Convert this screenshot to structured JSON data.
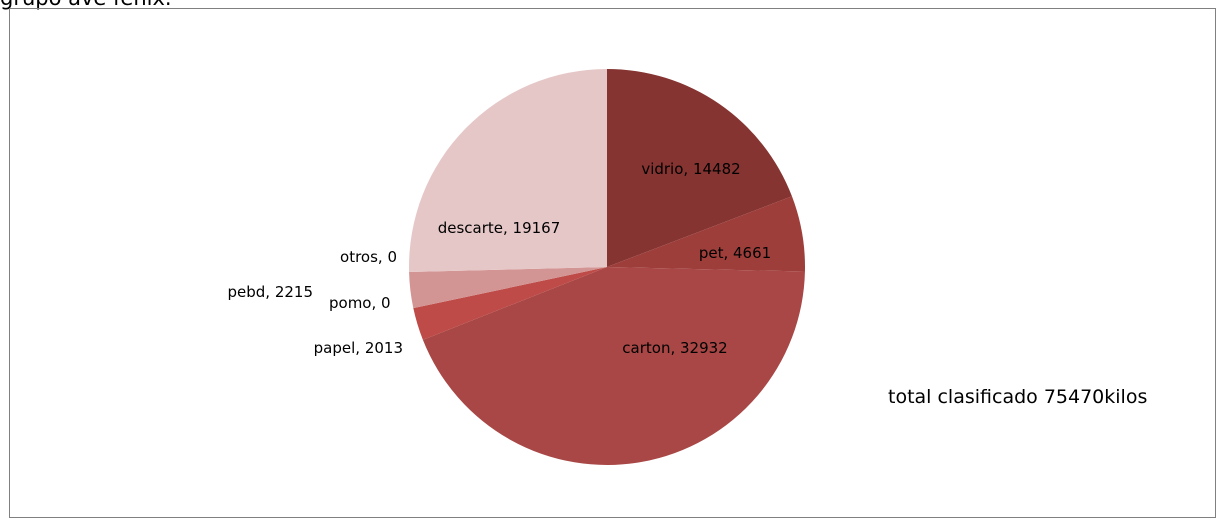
{
  "chart_data": {
    "type": "pie",
    "title": "grupo ave fenix.",
    "categories": [
      "vidrio",
      "pet",
      "carton",
      "papel",
      "pebd",
      "pomo",
      "otros",
      "descarte"
    ],
    "values": [
      14482,
      4661,
      32932,
      2013,
      2215,
      0,
      0,
      19167
    ],
    "data_labels": [
      "vidrio, 14482",
      "pet, 4661",
      "carton, 32932",
      "papel, 2013",
      "pebd, 2215",
      "pomo, 0",
      "otros, 0",
      "descarte, 19167"
    ],
    "colors": [
      "#853431",
      "#9e3e3b",
      "#a84745",
      "#be4b48",
      "#d39593",
      "#d39593",
      "#d39593",
      "#e6c7c7"
    ],
    "legend": "none",
    "annotation": "total clasificado 75470kilos"
  }
}
